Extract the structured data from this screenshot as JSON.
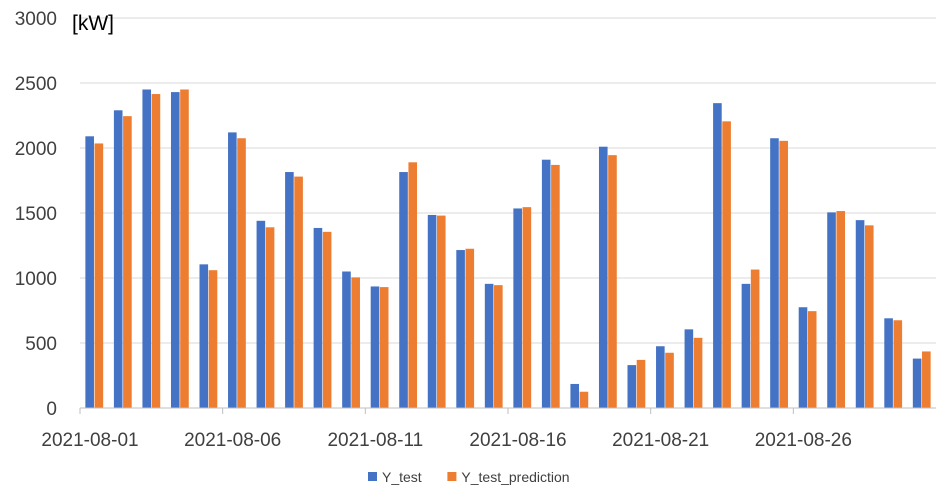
{
  "chart_data": {
    "type": "bar",
    "unit_label": "[kW]",
    "categories": [
      "2021-08-01",
      "2021-08-02",
      "2021-08-03",
      "2021-08-04",
      "2021-08-05",
      "2021-08-06",
      "2021-08-07",
      "2021-08-08",
      "2021-08-09",
      "2021-08-10",
      "2021-08-11",
      "2021-08-12",
      "2021-08-13",
      "2021-08-14",
      "2021-08-15",
      "2021-08-16",
      "2021-08-17",
      "2021-08-18",
      "2021-08-19",
      "2021-08-20",
      "2021-08-21",
      "2021-08-22",
      "2021-08-23",
      "2021-08-24",
      "2021-08-25",
      "2021-08-26",
      "2021-08-27",
      "2021-08-28",
      "2021-08-29",
      "2021-08-30"
    ],
    "x_tick_labels": [
      "2021-08-01",
      "2021-08-06",
      "2021-08-11",
      "2021-08-16",
      "2021-08-21",
      "2021-08-26"
    ],
    "series": [
      {
        "name": "Y_test",
        "color": "#4472c4",
        "values": [
          2090,
          2290,
          2450,
          2430,
          1105,
          2120,
          1440,
          1815,
          1385,
          1050,
          935,
          1815,
          1485,
          1215,
          955,
          1535,
          1910,
          185,
          2010,
          330,
          475,
          605,
          2345,
          955,
          2075,
          775,
          1505,
          1445,
          690,
          380
        ]
      },
      {
        "name": "Y_test_prediction",
        "color": "#ed7d31",
        "values": [
          2035,
          2245,
          2415,
          2450,
          1060,
          2075,
          1390,
          1780,
          1355,
          1005,
          930,
          1890,
          1480,
          1225,
          945,
          1545,
          1870,
          125,
          1945,
          370,
          425,
          540,
          2205,
          1065,
          2055,
          745,
          1515,
          1405,
          675,
          435
        ]
      }
    ],
    "ylim": [
      0,
      3000
    ],
    "yticks": [
      0,
      500,
      1000,
      1500,
      2000,
      2500,
      3000
    ],
    "grid": true,
    "legend_position": "bottom-center"
  }
}
